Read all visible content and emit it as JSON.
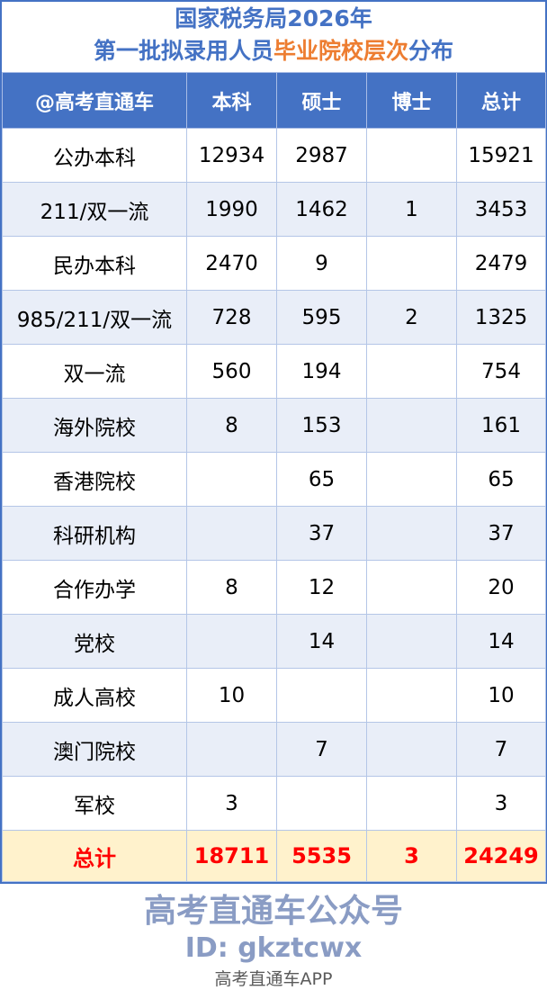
{
  "title": {
    "line1": "国家税务局2026年",
    "line2_prefix": "第一批拟录用人员",
    "line2_highlight": "毕业院校层次",
    "line2_suffix": "分布"
  },
  "colors": {
    "header_bg": "#4472c4",
    "accent_orange": "#ed7d31",
    "total_bg": "#fff2cc",
    "total_text": "#ff0000",
    "alt_row": "#e9eef8"
  },
  "table": {
    "headers": [
      "@高考直通车",
      "本科",
      "硕士",
      "博士",
      "总计"
    ],
    "rows": [
      [
        "公办本科",
        "12934",
        "2987",
        "",
        "15921"
      ],
      [
        "211/双一流",
        "1990",
        "1462",
        "1",
        "3453"
      ],
      [
        "民办本科",
        "2470",
        "9",
        "",
        "2479"
      ],
      [
        "985/211/双一流",
        "728",
        "595",
        "2",
        "1325"
      ],
      [
        "双一流",
        "560",
        "194",
        "",
        "754"
      ],
      [
        "海外院校",
        "8",
        "153",
        "",
        "161"
      ],
      [
        "香港院校",
        "",
        "65",
        "",
        "65"
      ],
      [
        "科研机构",
        "",
        "37",
        "",
        "37"
      ],
      [
        "合作办学",
        "8",
        "12",
        "",
        "20"
      ],
      [
        "党校",
        "",
        "14",
        "",
        "14"
      ],
      [
        "成人高校",
        "10",
        "",
        "",
        "10"
      ],
      [
        "澳门院校",
        "",
        "7",
        "",
        "7"
      ],
      [
        "军校",
        "3",
        "",
        "",
        "3"
      ]
    ],
    "total": [
      "总计",
      "18711",
      "5535",
      "3",
      "24249"
    ]
  },
  "watermark": {
    "line1": "高考直通车公众号",
    "line2": "ID: gkztcwx",
    "app": "高考直通车APP"
  }
}
